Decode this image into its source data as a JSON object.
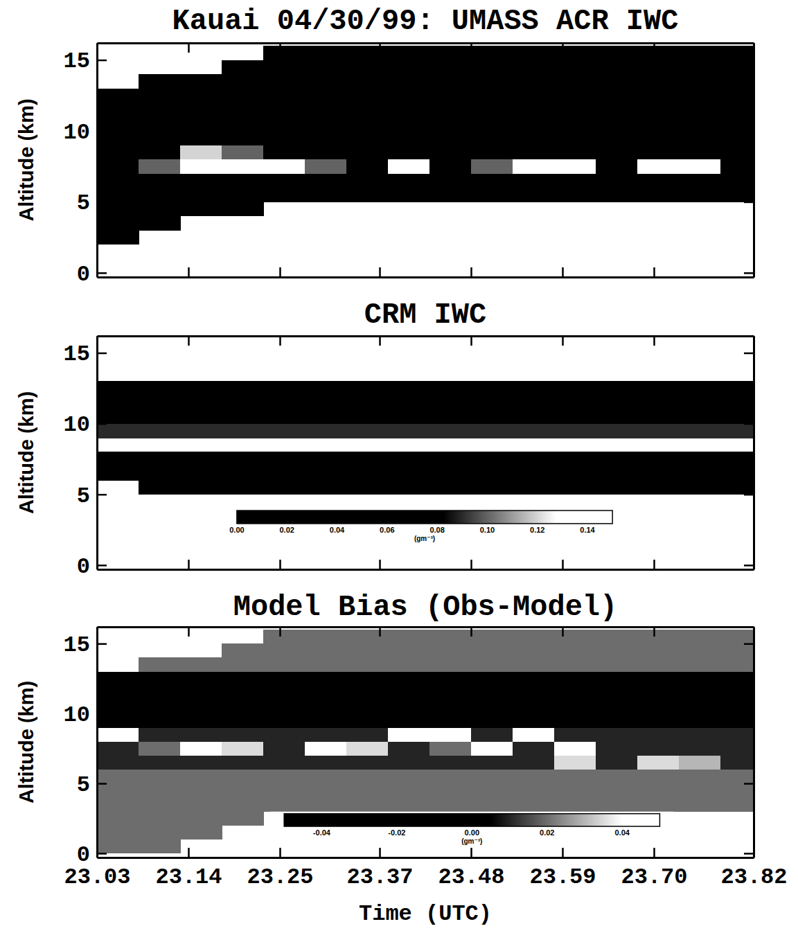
{
  "chart_data": [
    {
      "type": "heatmap",
      "title": "Kauai 04/30/99: UMASS ACR IWC",
      "y_label": "Altitude (km)",
      "xlim": [
        23.03,
        23.82
      ],
      "ylim": [
        -0.3,
        16.2
      ],
      "xticks": [
        23.03,
        23.14,
        23.25,
        23.37,
        23.48,
        23.59,
        23.7,
        23.82
      ],
      "yticks": [
        0,
        5,
        10,
        15
      ],
      "tick_labels": "y",
      "zlim": [
        0,
        0.15
      ],
      "x_edges": [
        23.03,
        23.08,
        23.13,
        23.18,
        23.23,
        23.28,
        23.33,
        23.38,
        23.43,
        23.48,
        23.53,
        23.58,
        23.63,
        23.68,
        23.73,
        23.78,
        23.82
      ],
      "y_edges": [
        0,
        1,
        2,
        3,
        4,
        5,
        6,
        7,
        8,
        9,
        10,
        11,
        12,
        13,
        14,
        15,
        16
      ],
      "z": [
        [
          null,
          null,
          null,
          null,
          null,
          null,
          null,
          null,
          null,
          null,
          null,
          null,
          null,
          null,
          null,
          null
        ],
        [
          null,
          null,
          null,
          null,
          null,
          null,
          null,
          null,
          null,
          null,
          null,
          null,
          null,
          null,
          null,
          null
        ],
        [
          0.005,
          null,
          null,
          null,
          null,
          null,
          null,
          null,
          null,
          null,
          null,
          null,
          null,
          null,
          null,
          null
        ],
        [
          0.005,
          0.005,
          null,
          null,
          null,
          null,
          null,
          null,
          null,
          null,
          null,
          null,
          null,
          null,
          null,
          null
        ],
        [
          0.005,
          0.005,
          0.005,
          0.005,
          null,
          null,
          null,
          null,
          null,
          null,
          null,
          null,
          null,
          null,
          null,
          null
        ],
        [
          0.005,
          0.005,
          0.005,
          0.005,
          0.005,
          0.005,
          0.005,
          0.005,
          0.005,
          0.005,
          0.005,
          0.005,
          0.005,
          0.005,
          0.005,
          0.005
        ],
        [
          0.01,
          0.01,
          0.01,
          0.01,
          0.01,
          0.01,
          0.01,
          0.01,
          0.01,
          0.01,
          0.01,
          0.01,
          0.01,
          0.01,
          0.03,
          0.01
        ],
        [
          0.02,
          0.1,
          0.14,
          0.14,
          0.14,
          0.1,
          0.02,
          0.13,
          0.02,
          0.1,
          0.14,
          0.13,
          0.08,
          0.14,
          0.14,
          0.02
        ],
        [
          0.02,
          0.05,
          0.12,
          0.1,
          0.03,
          0.02,
          0.01,
          0.01,
          0.01,
          0.02,
          0.02,
          0.01,
          0.01,
          0.02,
          0.01,
          0.01
        ],
        [
          0.01,
          0.01,
          0.01,
          0.01,
          0.01,
          0.01,
          0.01,
          0.01,
          0.01,
          0.01,
          0.01,
          0.01,
          0.01,
          0.01,
          0.01,
          0.01
        ],
        [
          0.01,
          0.01,
          0.01,
          0.01,
          0.01,
          0.01,
          0.01,
          0.01,
          0.01,
          0.01,
          0.01,
          0.01,
          0.01,
          0.01,
          0.01,
          0.01
        ],
        [
          0.01,
          0.01,
          0.01,
          0.01,
          0.01,
          0.01,
          0.01,
          0.01,
          0.01,
          0.01,
          0.01,
          0.01,
          0.01,
          0.01,
          0.01,
          0.01
        ],
        [
          0.01,
          0.01,
          0.01,
          0.01,
          0.01,
          0.01,
          0.01,
          0.01,
          0.01,
          0.01,
          0.01,
          0.01,
          0.01,
          0.01,
          0.01,
          0.01
        ],
        [
          null,
          0.01,
          0.01,
          0.01,
          0.01,
          0.01,
          0.01,
          0.01,
          0.01,
          0.01,
          0.01,
          0.01,
          0.01,
          0.01,
          0.01,
          0.01
        ],
        [
          null,
          null,
          null,
          0.01,
          0.01,
          0.01,
          0.01,
          0.01,
          0.01,
          0.01,
          0.01,
          0.01,
          0.01,
          0.01,
          0.01,
          0.01
        ],
        [
          null,
          null,
          null,
          null,
          0.01,
          0.01,
          0.01,
          0.01,
          0.01,
          0.01,
          0.01,
          0.01,
          0.01,
          0.01,
          0.01,
          0.01
        ]
      ]
    },
    {
      "type": "heatmap",
      "title": "CRM IWC",
      "y_label": "Altitude (km)",
      "xlim": [
        23.03,
        23.82
      ],
      "ylim": [
        -0.3,
        16.2
      ],
      "xticks": [
        23.03,
        23.14,
        23.25,
        23.37,
        23.48,
        23.59,
        23.7,
        23.82
      ],
      "yticks": [
        0,
        5,
        10,
        15
      ],
      "tick_labels": "y",
      "zlim": [
        0,
        0.15
      ],
      "colorbar": {
        "label": "(gm⁻³)",
        "ticks": [
          {
            "value": 0,
            "label": "0.00"
          },
          0.02,
          0.04,
          0.06,
          0.08,
          {
            "value": 0.1,
            "label": "0.10"
          },
          0.12,
          0.14
        ]
      },
      "x_edges": [
        23.03,
        23.08,
        23.13,
        23.18,
        23.23,
        23.28,
        23.33,
        23.38,
        23.43,
        23.48,
        23.53,
        23.58,
        23.63,
        23.68,
        23.73,
        23.78,
        23.82
      ],
      "y_edges": [
        0,
        1,
        2,
        3,
        4,
        5,
        6,
        7,
        8,
        9,
        10,
        11,
        12,
        13,
        14,
        15,
        16
      ],
      "z": [
        [
          null,
          null,
          null,
          null,
          null,
          null,
          null,
          null,
          null,
          null,
          null,
          null,
          null,
          null,
          null,
          null
        ],
        [
          null,
          null,
          null,
          null,
          null,
          null,
          null,
          null,
          null,
          null,
          null,
          null,
          null,
          null,
          null,
          null
        ],
        [
          null,
          null,
          null,
          null,
          null,
          null,
          null,
          null,
          null,
          null,
          null,
          null,
          null,
          null,
          null,
          null
        ],
        [
          null,
          null,
          null,
          null,
          null,
          null,
          null,
          null,
          null,
          null,
          null,
          null,
          null,
          null,
          null,
          null
        ],
        [
          null,
          null,
          null,
          null,
          null,
          null,
          null,
          null,
          null,
          null,
          null,
          null,
          null,
          null,
          null,
          null
        ],
        [
          null,
          0.01,
          0.01,
          0.01,
          0.01,
          0.01,
          0.01,
          0.01,
          0.01,
          0.01,
          0.01,
          0.01,
          0.01,
          0.01,
          0.01,
          0.01
        ],
        [
          0.01,
          0.01,
          0.01,
          0.01,
          0.01,
          0.01,
          0.01,
          0.01,
          0.01,
          0.01,
          0.01,
          0.01,
          0.01,
          0.01,
          0.01,
          0.01
        ],
        [
          0.01,
          0.01,
          0.01,
          0.01,
          0.01,
          0.01,
          0.01,
          0.01,
          0.01,
          0.01,
          0.01,
          0.01,
          0.01,
          0.01,
          0.01,
          0.01
        ],
        [
          null,
          null,
          null,
          null,
          null,
          null,
          null,
          null,
          null,
          null,
          null,
          null,
          null,
          null,
          null,
          null
        ],
        [
          0.09,
          0.09,
          0.09,
          0.09,
          0.09,
          0.09,
          0.09,
          0.09,
          0.09,
          0.09,
          0.09,
          0.09,
          0.09,
          0.09,
          0.09,
          0.09
        ],
        [
          0.01,
          0.01,
          0.01,
          0.01,
          0.01,
          0.01,
          0.01,
          0.01,
          0.01,
          0.01,
          0.01,
          0.01,
          0.01,
          0.01,
          0.01,
          0.01
        ],
        [
          0.01,
          0.01,
          0.01,
          0.01,
          0.01,
          0.01,
          0.01,
          0.01,
          0.01,
          0.01,
          0.01,
          0.01,
          0.01,
          0.01,
          0.01,
          0.01
        ],
        [
          0.01,
          0.01,
          0.01,
          0.01,
          0.01,
          0.01,
          0.01,
          0.01,
          0.01,
          0.01,
          0.01,
          0.01,
          0.01,
          0.01,
          0.01,
          0.01
        ],
        [
          null,
          null,
          null,
          null,
          null,
          null,
          null,
          null,
          null,
          null,
          null,
          null,
          null,
          null,
          null,
          null
        ],
        [
          null,
          null,
          null,
          null,
          null,
          null,
          null,
          null,
          null,
          null,
          null,
          null,
          null,
          null,
          null,
          null
        ],
        [
          null,
          null,
          null,
          null,
          null,
          null,
          null,
          null,
          null,
          null,
          null,
          null,
          null,
          null,
          null,
          null
        ]
      ]
    },
    {
      "type": "heatmap",
      "title": "Model Bias (Obs-Model)",
      "y_label": "Altitude (km)",
      "x_label": "Time (UTC)",
      "xlim": [
        23.03,
        23.82
      ],
      "ylim": [
        -0.3,
        16.2
      ],
      "xticks": [
        23.03,
        23.14,
        23.25,
        23.37,
        23.48,
        23.59,
        {
          "value": 23.7,
          "label": "23.70"
        },
        23.82
      ],
      "yticks": [
        0,
        5,
        10,
        15
      ],
      "zlim": [
        -0.05,
        0.05
      ],
      "colorbar": {
        "label": "(gm⁻³)",
        "ticks": [
          -0.04,
          -0.02,
          {
            "value": 0,
            "label": "0.00"
          },
          0.02,
          0.04
        ]
      },
      "x_edges": [
        23.03,
        23.08,
        23.13,
        23.18,
        23.23,
        23.28,
        23.33,
        23.38,
        23.43,
        23.48,
        23.53,
        23.58,
        23.63,
        23.68,
        23.73,
        23.78,
        23.82
      ],
      "y_edges": [
        0,
        1,
        2,
        3,
        4,
        5,
        6,
        7,
        8,
        9,
        10,
        11,
        12,
        13,
        14,
        15,
        16
      ],
      "z": [
        [
          0.02,
          0.02,
          null,
          null,
          null,
          null,
          null,
          null,
          null,
          null,
          null,
          null,
          null,
          null,
          null,
          null
        ],
        [
          0.02,
          0.02,
          0.02,
          null,
          null,
          null,
          null,
          null,
          null,
          null,
          null,
          null,
          null,
          null,
          null,
          null
        ],
        [
          0.02,
          0.02,
          0.02,
          0.02,
          null,
          null,
          null,
          null,
          null,
          null,
          null,
          null,
          null,
          null,
          null,
          null
        ],
        [
          0.02,
          0.02,
          0.02,
          0.02,
          0.02,
          0.02,
          0.02,
          0.02,
          0.02,
          0.02,
          0.02,
          0.02,
          0.02,
          0.02,
          0.02,
          0.02
        ],
        [
          0.02,
          0.02,
          0.02,
          0.02,
          0.02,
          0.02,
          0.02,
          0.02,
          0.02,
          0.02,
          0.02,
          0.02,
          0.02,
          0.02,
          0.02,
          0.02
        ],
        [
          0.02,
          0.02,
          0.02,
          0.02,
          0.02,
          0.02,
          0.02,
          0.02,
          0.02,
          0.02,
          0.02,
          0.02,
          0.02,
          0.02,
          0.02,
          0.02
        ],
        [
          0.01,
          0.01,
          0.01,
          0.01,
          0.01,
          0.01,
          0.01,
          0.01,
          0.01,
          0.01,
          0.01,
          0.035,
          0.01,
          0.035,
          0.03,
          0.01
        ],
        [
          0.01,
          0.02,
          0.04,
          0.035,
          0.01,
          0.04,
          0.035,
          0.01,
          0.02,
          0.04,
          0.01,
          0.04,
          0.01,
          0.01,
          0.01,
          0.01
        ],
        [
          0.04,
          0.01,
          0.01,
          0.01,
          0.01,
          0.01,
          0.01,
          0.04,
          0.04,
          0.01,
          0.04,
          0.01,
          0.01,
          0.01,
          0.01,
          0.01
        ],
        [
          -0.01,
          -0.01,
          -0.01,
          -0.01,
          -0.01,
          -0.01,
          -0.01,
          -0.01,
          -0.01,
          -0.01,
          -0.01,
          -0.01,
          -0.01,
          -0.01,
          -0.01,
          -0.01
        ],
        [
          -0.01,
          -0.01,
          -0.01,
          -0.01,
          -0.01,
          -0.01,
          -0.01,
          -0.01,
          -0.01,
          -0.01,
          -0.01,
          -0.01,
          -0.01,
          -0.01,
          -0.01,
          -0.01
        ],
        [
          -0.01,
          -0.01,
          -0.01,
          -0.01,
          -0.01,
          -0.01,
          -0.01,
          -0.01,
          -0.01,
          -0.01,
          -0.01,
          -0.01,
          -0.01,
          -0.01,
          -0.01,
          -0.01
        ],
        [
          -0.01,
          -0.01,
          -0.01,
          -0.01,
          -0.01,
          -0.01,
          -0.01,
          -0.01,
          -0.01,
          -0.01,
          -0.01,
          -0.01,
          -0.01,
          -0.01,
          -0.01,
          -0.01
        ],
        [
          null,
          0.02,
          0.02,
          0.02,
          0.02,
          0.02,
          0.02,
          0.02,
          0.02,
          0.02,
          0.02,
          0.02,
          0.02,
          0.02,
          0.02,
          0.02
        ],
        [
          null,
          null,
          null,
          0.02,
          0.02,
          0.02,
          0.02,
          0.02,
          0.02,
          0.02,
          0.02,
          0.02,
          0.02,
          0.02,
          0.02,
          0.02
        ],
        [
          null,
          null,
          null,
          null,
          0.02,
          0.02,
          0.02,
          0.02,
          0.02,
          0.02,
          0.02,
          0.02,
          0.02,
          0.02,
          0.02,
          0.02
        ]
      ]
    }
  ]
}
